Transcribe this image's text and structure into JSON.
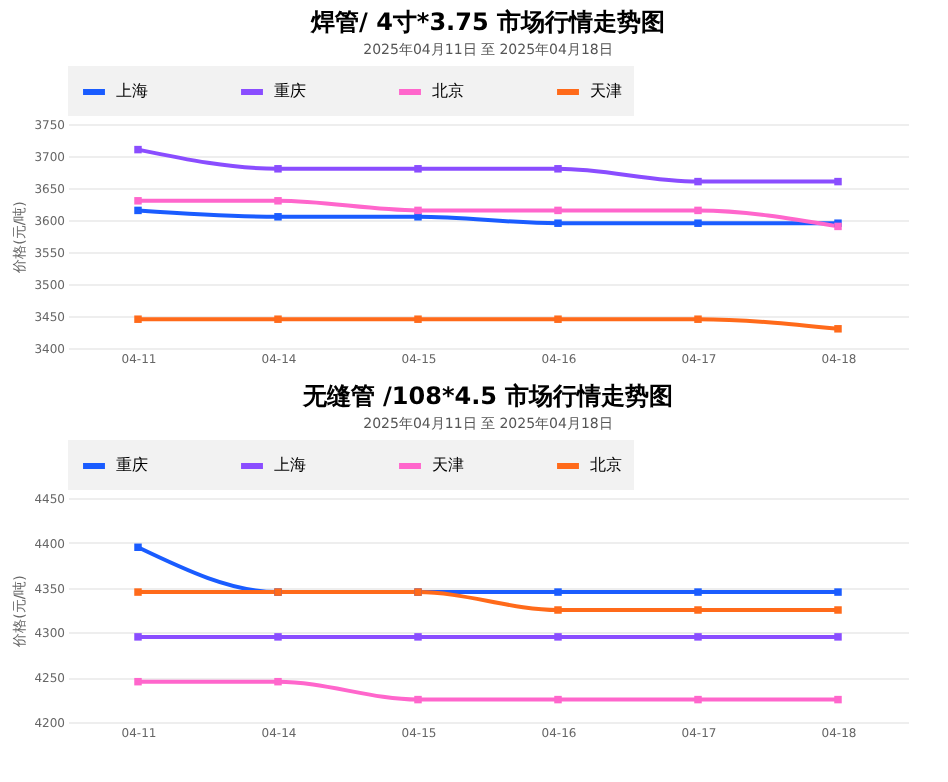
{
  "chart_data": [
    {
      "type": "line",
      "title": "焊管/ 4寸*3.75 市场行情走势图",
      "subtitle": "2025年04月11日 至 2025年04月18日",
      "ylabel": "价格(元/吨)",
      "categories": [
        "04-11",
        "04-14",
        "04-15",
        "04-16",
        "04-17",
        "04-18"
      ],
      "series": [
        {
          "name": "上海",
          "color": "#1a5cff",
          "values": [
            3615,
            3605,
            3605,
            3595,
            3595,
            3595
          ]
        },
        {
          "name": "重庆",
          "color": "#8a4dff",
          "values": [
            3710,
            3680,
            3680,
            3680,
            3660,
            3660
          ]
        },
        {
          "name": "北京",
          "color": "#ff66cc",
          "values": [
            3630,
            3630,
            3615,
            3615,
            3615,
            3590
          ]
        },
        {
          "name": "天津",
          "color": "#ff6a1a",
          "values": [
            3445,
            3445,
            3445,
            3445,
            3445,
            3430
          ]
        }
      ],
      "ylim": [
        3400,
        3750
      ],
      "yticks": [
        3400,
        3450,
        3500,
        3550,
        3600,
        3650,
        3700,
        3750
      ],
      "grid": "y",
      "legend": "top left",
      "marker": "square",
      "line_style": "solid"
    },
    {
      "type": "line",
      "title": "无缝管 /108*4.5 市场行情走势图",
      "subtitle": "2025年04月11日 至 2025年04月18日",
      "ylabel": "价格(元/吨)",
      "categories": [
        "04-11",
        "04-14",
        "04-15",
        "04-16",
        "04-17",
        "04-18"
      ],
      "series": [
        {
          "name": "重庆",
          "color": "#1a5cff",
          "values": [
            4395,
            4345,
            4345,
            4345,
            4345,
            4345
          ]
        },
        {
          "name": "上海",
          "color": "#8a4dff",
          "values": [
            4295,
            4295,
            4295,
            4295,
            4295,
            4295
          ]
        },
        {
          "name": "天津",
          "color": "#ff66cc",
          "values": [
            4245,
            4245,
            4225,
            4225,
            4225,
            4225
          ]
        },
        {
          "name": "北京",
          "color": "#ff6a1a",
          "values": [
            4345,
            4345,
            4345,
            4325,
            4325,
            4325
          ]
        }
      ],
      "ylim": [
        4200,
        4450
      ],
      "yticks": [
        4200,
        4250,
        4300,
        4350,
        4400,
        4450
      ],
      "grid": "y",
      "legend": "top left",
      "marker": "square",
      "line_style": "solid"
    }
  ]
}
